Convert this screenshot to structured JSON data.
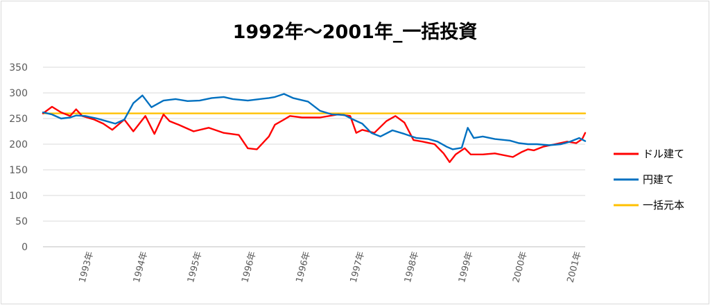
{
  "chart_data": {
    "type": "line",
    "title": "1992年～2001年_一括投資",
    "xlabel": "",
    "ylabel": "",
    "ylim": [
      0,
      350
    ],
    "yticks": [
      0,
      50,
      100,
      150,
      200,
      250,
      300,
      350
    ],
    "xlim": [
      1992.0,
      2001.0
    ],
    "xtick_labels": [
      "1993年",
      "1994年",
      "1995年",
      "1996年",
      "1996年",
      "1997年",
      "1998年",
      "1999年",
      "2000年",
      "2001年"
    ],
    "grid": true,
    "legend": "right",
    "series": [
      {
        "name": "ドル建て",
        "color": "#ff0000",
        "x": [
          1992.0,
          1992.15,
          1992.3,
          1992.45,
          1992.55,
          1992.65,
          1992.85,
          1993.0,
          1993.15,
          1993.35,
          1993.5,
          1993.7,
          1993.85,
          1994.0,
          1994.1,
          1994.25,
          1994.5,
          1994.75,
          1995.0,
          1995.25,
          1995.4,
          1995.55,
          1995.75,
          1995.85,
          1996.0,
          1996.1,
          1996.3,
          1996.6,
          1996.9,
          1997.1,
          1997.2,
          1997.3,
          1997.5,
          1997.7,
          1997.85,
          1998.0,
          1998.15,
          1998.3,
          1998.5,
          1998.65,
          1998.75,
          1998.85,
          1999.0,
          1999.1,
          1999.3,
          1999.5,
          1999.8,
          1999.95,
          2000.05,
          2000.15,
          2000.3,
          2000.5,
          2000.7,
          2000.85,
          2000.95,
          2001.0
        ],
        "values": [
          260,
          273,
          262,
          255,
          268,
          255,
          248,
          240,
          228,
          248,
          225,
          255,
          220,
          258,
          245,
          238,
          225,
          232,
          222,
          218,
          192,
          190,
          215,
          238,
          248,
          255,
          252,
          252,
          258,
          255,
          222,
          228,
          222,
          245,
          255,
          242,
          208,
          205,
          200,
          182,
          165,
          180,
          192,
          180,
          180,
          182,
          175,
          185,
          190,
          188,
          195,
          200,
          205,
          202,
          210,
          222
        ]
      },
      {
        "name": "円建て",
        "color": "#0070c0",
        "x": [
          1992.0,
          1992.15,
          1992.3,
          1992.45,
          1992.55,
          1992.7,
          1992.9,
          1993.05,
          1993.2,
          1993.35,
          1993.5,
          1993.65,
          1993.8,
          1994.0,
          1994.2,
          1994.4,
          1994.6,
          1994.8,
          1995.0,
          1995.15,
          1995.4,
          1995.6,
          1995.75,
          1995.85,
          1996.0,
          1996.15,
          1996.4,
          1996.6,
          1996.8,
          1997.0,
          1997.15,
          1997.3,
          1997.45,
          1997.6,
          1997.8,
          1998.0,
          1998.2,
          1998.4,
          1998.55,
          1998.7,
          1998.8,
          1998.95,
          1999.05,
          1999.15,
          1999.3,
          1999.5,
          1999.75,
          1999.9,
          2000.05,
          2000.2,
          2000.4,
          2000.6,
          2000.75,
          2000.9,
          2001.0
        ],
        "values": [
          262,
          258,
          250,
          252,
          256,
          255,
          250,
          245,
          240,
          248,
          280,
          295,
          272,
          285,
          288,
          284,
          285,
          290,
          292,
          288,
          285,
          288,
          290,
          292,
          298,
          290,
          283,
          265,
          258,
          257,
          248,
          240,
          222,
          215,
          227,
          220,
          212,
          210,
          205,
          195,
          190,
          193,
          232,
          212,
          215,
          210,
          207,
          202,
          200,
          200,
          198,
          200,
          205,
          212,
          206
        ]
      },
      {
        "name": "一括元本",
        "color": "#ffc000",
        "x": [
          1992.0,
          2001.0
        ],
        "values": [
          260,
          260
        ]
      }
    ]
  }
}
